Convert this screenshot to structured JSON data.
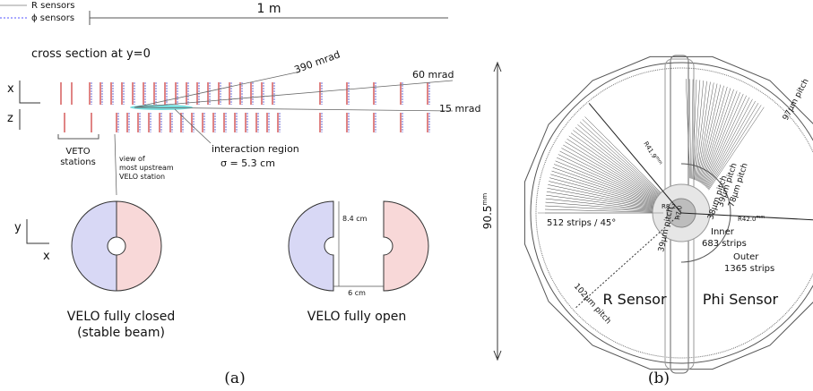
{
  "panel_a": {
    "legend": [
      "R sensors",
      "ϕ sensors"
    ],
    "scale_label": "1 m",
    "section_title": "cross section at y=0",
    "angles": [
      "390 mrad",
      "60 mrad",
      "15 mrad"
    ],
    "axes_top": [
      "x",
      "z"
    ],
    "axes_bottom": [
      "y",
      "x"
    ],
    "veto_label": [
      "VETO",
      "stations"
    ],
    "view_label": [
      "view of",
      "most upstream",
      "VELO station"
    ],
    "interaction": [
      "interaction region",
      "σ = 5.3 cm"
    ],
    "dims": [
      "8.4 cm",
      "6 cm"
    ],
    "caption_closed": [
      "VELO fully closed",
      "(stable beam)"
    ],
    "caption_open": "VELO fully open",
    "label": "(a)"
  },
  "panel_b": {
    "height": {
      "value": "90.5",
      "unit": "mm"
    },
    "pitches": [
      "97μm pitch",
      "39μm pitch",
      "78μm pitch",
      "38μm pitch",
      "39μm pitch",
      "102μm pitch"
    ],
    "radius_outer_r": {
      "value": "R41.9",
      "unit": "mm"
    },
    "radius_outer_phi": {
      "value": "R42.0",
      "unit": "mm"
    },
    "radius_inner": [
      "R8.2",
      "R7.0"
    ],
    "r_strips": "512 strips / 45°",
    "inner": [
      "Inner",
      "683 strips"
    ],
    "outer": [
      "Outer",
      "1365 strips"
    ],
    "sensors": [
      "R Sensor",
      "Phi Sensor"
    ],
    "label": "(b)"
  }
}
